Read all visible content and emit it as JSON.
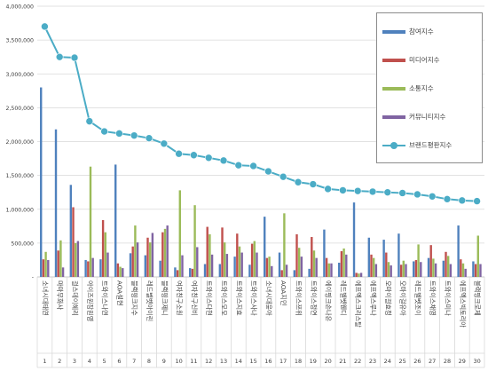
{
  "chart_data": {
    "type": "bar",
    "title": "",
    "xlabel": "",
    "ylabel": "",
    "ylim": [
      0,
      4000000
    ],
    "yticks": [
      "-",
      "500,000",
      "1,000,000",
      "1,500,000",
      "2,000,000",
      "2,500,000",
      "3,000,000",
      "3,500,000",
      "4,000,000"
    ],
    "grid": true,
    "legend_position": "top-right",
    "categories": [
      "소녀시대태연",
      "마마무화사",
      "걸스데이혜리",
      "아이즈원장원영",
      "트와이스나연",
      "AOA설현",
      "블랙핑크지수",
      "레드벨벳아이린",
      "블랙핑크제니",
      "여자친구소원",
      "여자친구신비",
      "트와이스다현",
      "트와이스모모",
      "트와이스지효",
      "트와이스사나",
      "소녀시대윤아",
      "AOA지민",
      "트와이스쯔위",
      "트와이스정연",
      "에이핑크손나은",
      "레드벨벳웬디",
      "에프엑스크리스탈",
      "에프엑스루나",
      "오마이걸효정",
      "오마이걸유아",
      "레드벨벳조이",
      "트와이스채영",
      "트와이스미나",
      "에프엑스빅토리아",
      "블랙핑크로제"
    ],
    "index_labels": [
      "1",
      "2",
      "3",
      "4",
      "5",
      "6",
      "7",
      "8",
      "9",
      "10",
      "11",
      "12",
      "13",
      "14",
      "15",
      "16",
      "17",
      "18",
      "19",
      "20",
      "21",
      "22",
      "23",
      "24",
      "25",
      "26",
      "27",
      "28",
      "29",
      "30"
    ],
    "series": [
      {
        "name": "참여지수",
        "color": "#4f81bd",
        "values": [
          2800000,
          2180000,
          1360000,
          250000,
          260000,
          1660000,
          350000,
          320000,
          240000,
          140000,
          130000,
          190000,
          190000,
          300000,
          180000,
          890000,
          360000,
          100000,
          120000,
          700000,
          210000,
          1100000,
          580000,
          550000,
          640000,
          230000,
          280000,
          240000,
          760000,
          230000
        ]
      },
      {
        "name": "미디어지수",
        "color": "#c0504d",
        "values": [
          260000,
          390000,
          1030000,
          230000,
          840000,
          200000,
          450000,
          580000,
          660000,
          100000,
          120000,
          740000,
          730000,
          640000,
          490000,
          280000,
          100000,
          630000,
          590000,
          280000,
          380000,
          60000,
          330000,
          360000,
          180000,
          250000,
          470000,
          370000,
          260000,
          190000
        ]
      },
      {
        "name": "소통지수",
        "color": "#9bbb59",
        "values": [
          370000,
          540000,
          500000,
          1630000,
          660000,
          150000,
          760000,
          510000,
          710000,
          1280000,
          1060000,
          630000,
          510000,
          450000,
          530000,
          300000,
          940000,
          430000,
          390000,
          200000,
          420000,
          50000,
          280000,
          220000,
          240000,
          480000,
          270000,
          310000,
          200000,
          610000
        ]
      },
      {
        "name": "커뮤니티지수",
        "color": "#8064a2",
        "values": [
          250000,
          140000,
          530000,
          280000,
          360000,
          130000,
          510000,
          650000,
          760000,
          320000,
          440000,
          330000,
          340000,
          360000,
          360000,
          160000,
          180000,
          300000,
          280000,
          200000,
          330000,
          60000,
          190000,
          170000,
          190000,
          220000,
          200000,
          190000,
          120000,
          190000
        ]
      }
    ],
    "line": {
      "name": "브랜드평판지수",
      "color": "#4bacc6",
      "values": [
        3700000,
        3250000,
        3240000,
        2300000,
        2150000,
        2120000,
        2090000,
        2050000,
        1970000,
        1820000,
        1800000,
        1760000,
        1720000,
        1650000,
        1640000,
        1560000,
        1480000,
        1400000,
        1370000,
        1300000,
        1280000,
        1270000,
        1260000,
        1250000,
        1240000,
        1220000,
        1190000,
        1150000,
        1130000,
        1120000
      ]
    }
  }
}
